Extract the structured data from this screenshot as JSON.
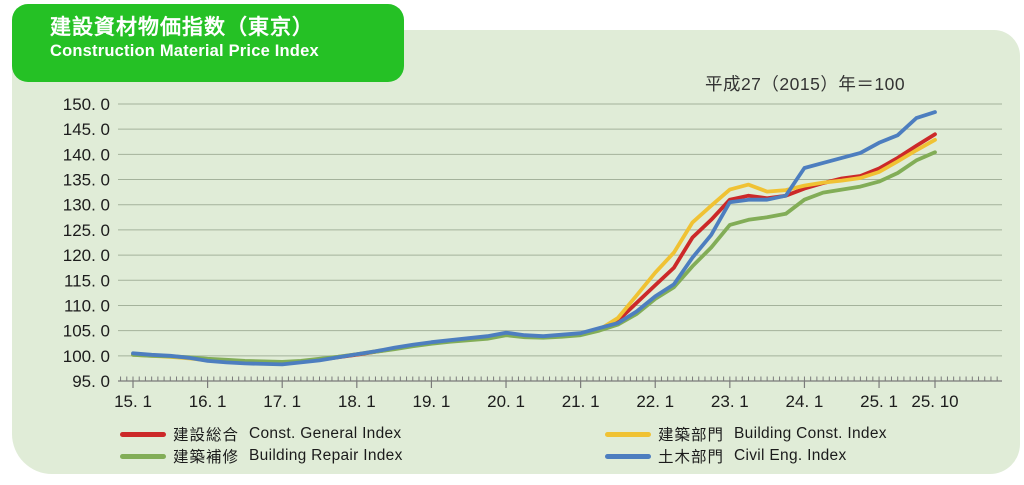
{
  "badge": {
    "title_ja": "建設資材物価指数（東京）",
    "subtitle_en": "Construction Material Price Index",
    "bg_color": "#25c125",
    "text_color": "#ffffff"
  },
  "note": "平成27（2015）年＝100",
  "panel": {
    "bg_color": "#e0ecd7"
  },
  "chart_data": {
    "type": "line",
    "title": "建設資材物価指数（東京） / Construction Material Price Index (Tokyo)",
    "base_note": "平成27（2015）年＝100",
    "x_unit": "months since 2015-01 (axis labels are year.month, e.g. 15.1 = Jan 2015)",
    "x": [
      0,
      3,
      6,
      9,
      12,
      15,
      18,
      21,
      24,
      27,
      30,
      33,
      36,
      39,
      42,
      45,
      48,
      51,
      54,
      57,
      60,
      63,
      66,
      69,
      72,
      75,
      78,
      81,
      84,
      87,
      90,
      93,
      96,
      99,
      102,
      105,
      108,
      111,
      114,
      117,
      120,
      123,
      126,
      129
    ],
    "x_tick_positions": [
      0,
      12,
      24,
      36,
      48,
      60,
      72,
      84,
      96,
      108,
      120,
      129
    ],
    "x_tick_labels": [
      "15. 1",
      "16. 1",
      "17. 1",
      "18. 1",
      "19. 1",
      "20. 1",
      "21. 1",
      "22. 1",
      "23. 1",
      "24. 1",
      "25. 1",
      "25. 10"
    ],
    "ylim": [
      95,
      150
    ],
    "y_ticks": [
      95,
      100,
      105,
      110,
      115,
      120,
      125,
      130,
      135,
      140,
      145,
      150
    ],
    "y_tick_labels": [
      "95. 0",
      "100. 0",
      "105. 0",
      "110. 0",
      "115. 0",
      "120. 0",
      "125. 0",
      "130. 0",
      "135. 0",
      "140. 0",
      "145. 0",
      "150. 0"
    ],
    "grid": "horizontal",
    "legend_position": "bottom",
    "axis_color": "#7a7a7a",
    "grid_color": "#a4b29b",
    "tick_label_color": "#1c1c1c",
    "series": [
      {
        "key": "const-general",
        "name_ja": "建設総合",
        "name_en": "Const. General  Index",
        "color": "#cc2929",
        "values": [
          100.3,
          100.1,
          99.9,
          99.6,
          99.2,
          98.9,
          98.7,
          98.6,
          98.5,
          98.8,
          99.2,
          99.7,
          100.2,
          100.8,
          101.4,
          102.0,
          102.5,
          102.9,
          103.3,
          103.7,
          104.4,
          103.9,
          103.8,
          104.0,
          104.3,
          105.3,
          107.0,
          110.5,
          114.0,
          117.5,
          123.5,
          127.0,
          131.0,
          131.8,
          131.3,
          131.8,
          133.2,
          134.3,
          135.2,
          135.7,
          137.2,
          139.3,
          141.7,
          144.0
        ]
      },
      {
        "key": "building-const",
        "name_ja": "建築部門",
        "name_en": "Building Const. Index",
        "color": "#f0c233",
        "values": [
          100.2,
          100.0,
          99.8,
          99.5,
          99.1,
          98.8,
          98.6,
          98.5,
          98.5,
          98.8,
          99.3,
          99.8,
          100.3,
          100.9,
          101.5,
          102.1,
          102.6,
          103.0,
          103.3,
          103.6,
          104.3,
          103.8,
          103.7,
          103.9,
          104.2,
          105.2,
          107.5,
          112.0,
          116.5,
          120.5,
          126.5,
          129.8,
          133.0,
          134.0,
          132.6,
          132.9,
          133.8,
          134.4,
          134.8,
          135.3,
          136.5,
          138.6,
          140.8,
          142.9
        ]
      },
      {
        "key": "building-repair",
        "name_ja": "建築補修",
        "name_en": "Building Repair Index",
        "color": "#82ad57",
        "values": [
          100.2,
          100.0,
          99.9,
          99.7,
          99.4,
          99.2,
          99.0,
          98.9,
          98.8,
          99.0,
          99.4,
          99.8,
          100.3,
          100.8,
          101.3,
          101.9,
          102.4,
          102.8,
          103.1,
          103.4,
          104.1,
          103.7,
          103.6,
          103.8,
          104.1,
          105.0,
          106.2,
          108.3,
          111.3,
          113.6,
          117.8,
          121.5,
          126.0,
          127.0,
          127.5,
          128.2,
          131.0,
          132.4,
          133.0,
          133.6,
          134.6,
          136.3,
          138.8,
          140.4
        ]
      },
      {
        "key": "civil-eng",
        "name_ja": "土木部門",
        "name_en": "Civil Eng. Index",
        "color": "#4d7ebf",
        "values": [
          100.5,
          100.2,
          100.0,
          99.6,
          99.0,
          98.7,
          98.5,
          98.4,
          98.3,
          98.7,
          99.1,
          99.7,
          100.3,
          100.9,
          101.6,
          102.2,
          102.7,
          103.1,
          103.5,
          103.9,
          104.6,
          104.1,
          103.9,
          104.2,
          104.5,
          105.5,
          106.5,
          108.8,
          111.8,
          114.2,
          119.5,
          124.0,
          130.5,
          131.0,
          131.0,
          131.8,
          137.3,
          138.3,
          139.3,
          140.3,
          142.3,
          143.8,
          147.2,
          148.4
        ]
      }
    ]
  }
}
